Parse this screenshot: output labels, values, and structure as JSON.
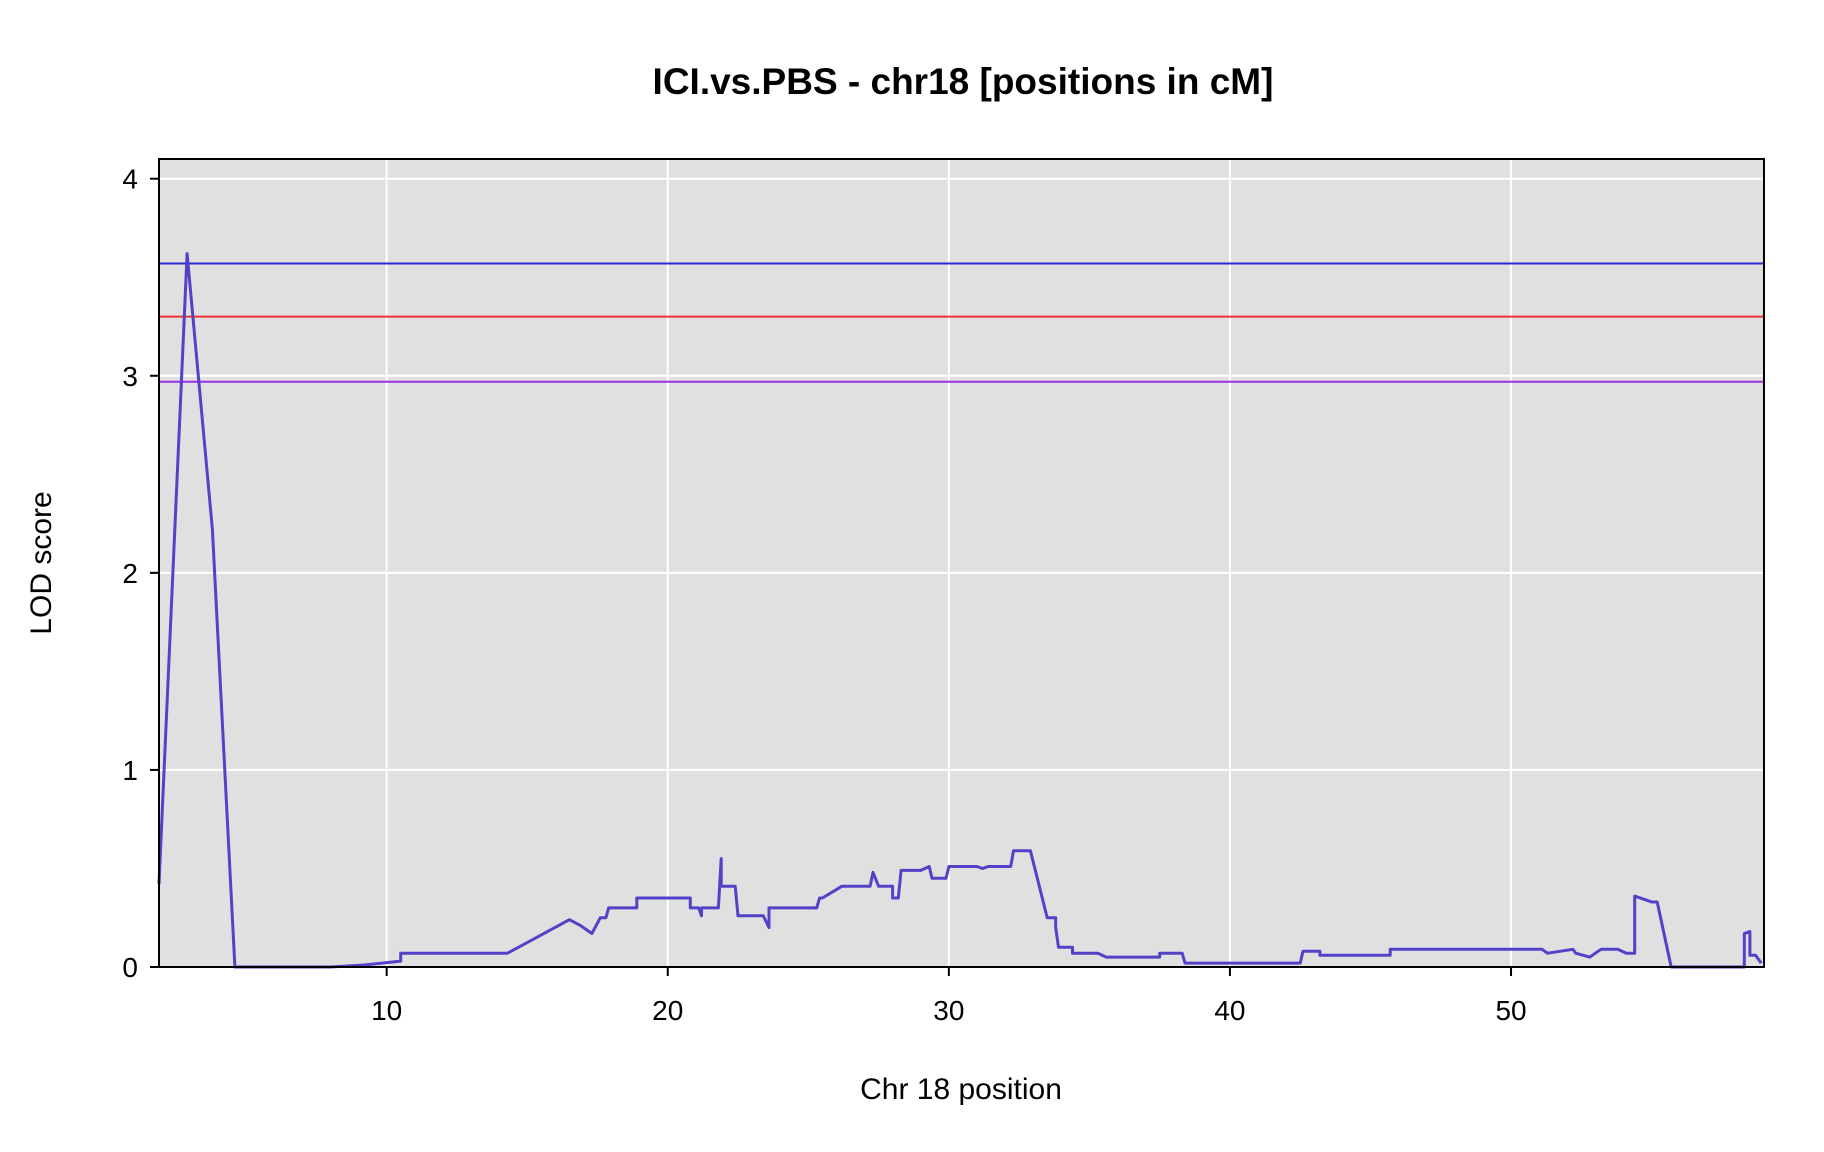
{
  "chart_data": {
    "type": "line",
    "title": "ICI.vs.PBS - chr18 [positions in cM]",
    "xlabel": "Chr 18 position",
    "ylabel": "LOD score",
    "xlim": [
      1.9,
      59.0
    ],
    "ylim": [
      0,
      4.1
    ],
    "xticks": [
      10,
      20,
      30,
      40,
      50
    ],
    "yticks": [
      0,
      1,
      2,
      3,
      4
    ],
    "grid": true,
    "background": "#e0e0e0",
    "thresholds": [
      {
        "value": 3.57,
        "color": "#2c2cd2"
      },
      {
        "value": 3.3,
        "color": "#f03232"
      },
      {
        "value": 2.97,
        "color": "#9b30e0"
      }
    ],
    "series": [
      {
        "color": "#5142c8",
        "x": [
          1.9,
          2.9,
          3.8,
          4.6,
          8.0,
          9.2,
          10.5,
          10.5,
          12.0,
          14.3,
          16.5,
          16.9,
          17.3,
          17.6,
          17.8,
          17.9,
          18.9,
          18.9,
          19.5,
          20.5,
          20.8,
          20.8,
          21.1,
          21.2,
          21.2,
          21.5,
          21.8,
          21.9,
          21.9,
          22.0,
          22.4,
          22.5,
          23.4,
          23.6,
          23.6,
          24.4,
          25.3,
          25.4,
          25.5,
          26.2,
          26.8,
          27.2,
          27.3,
          27.5,
          28.0,
          28.0,
          28.2,
          28.3,
          28.3,
          29.0,
          29.3,
          29.4,
          29.5,
          29.9,
          30.0,
          30.1,
          31.0,
          31.2,
          31.4,
          32.2,
          32.3,
          32.6,
          32.9,
          33.5,
          33.8,
          33.8,
          33.9,
          34.4,
          34.4,
          35.3,
          35.6,
          37.5,
          37.5,
          38.3,
          38.4,
          42.5,
          42.6,
          43.2,
          43.2,
          45.7,
          45.7,
          51.1,
          51.3,
          52.2,
          52.3,
          52.8,
          53.2,
          53.8,
          54.1,
          54.4,
          54.4,
          55.0,
          55.2,
          55.7,
          58.3,
          58.3,
          58.5,
          58.5,
          58.7,
          58.9
        ],
        "y": [
          0.42,
          3.62,
          2.22,
          0.0,
          0.0,
          0.01,
          0.03,
          0.07,
          0.07,
          0.07,
          0.24,
          0.21,
          0.17,
          0.25,
          0.25,
          0.3,
          0.3,
          0.35,
          0.35,
          0.35,
          0.35,
          0.3,
          0.3,
          0.26,
          0.3,
          0.3,
          0.3,
          0.55,
          0.41,
          0.41,
          0.41,
          0.26,
          0.26,
          0.2,
          0.3,
          0.3,
          0.3,
          0.35,
          0.35,
          0.41,
          0.41,
          0.41,
          0.48,
          0.41,
          0.41,
          0.35,
          0.35,
          0.49,
          0.49,
          0.49,
          0.51,
          0.45,
          0.45,
          0.45,
          0.51,
          0.51,
          0.51,
          0.5,
          0.51,
          0.51,
          0.59,
          0.59,
          0.59,
          0.25,
          0.25,
          0.2,
          0.1,
          0.1,
          0.07,
          0.07,
          0.05,
          0.05,
          0.07,
          0.07,
          0.02,
          0.02,
          0.08,
          0.08,
          0.06,
          0.06,
          0.09,
          0.09,
          0.07,
          0.09,
          0.07,
          0.05,
          0.09,
          0.09,
          0.07,
          0.07,
          0.36,
          0.33,
          0.33,
          0.0,
          0.0,
          0.17,
          0.18,
          0.06,
          0.06,
          0.02
        ]
      }
    ]
  }
}
